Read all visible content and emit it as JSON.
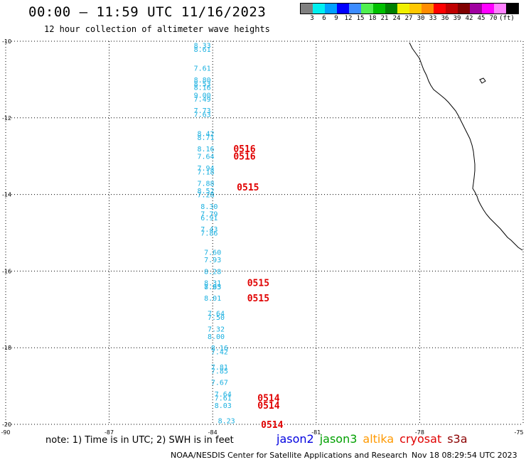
{
  "header": {
    "title": "00:00 – 11:59 UTC 11/16/2023",
    "subtitle": "12 hour collection of altimeter wave heights"
  },
  "colorbar": {
    "colors": [
      "#808080",
      "#00f0f0",
      "#00a0ff",
      "#0000ff",
      "#3c8cff",
      "#50f050",
      "#00c000",
      "#008000",
      "#f0f000",
      "#ffc800",
      "#ff8c00",
      "#ff0000",
      "#c00000",
      "#800000",
      "#a000a0",
      "#ff00ff",
      "#ff80ff",
      "#000000"
    ],
    "labels": [
      "3",
      "6",
      "9",
      "12",
      "15",
      "18",
      "21",
      "24",
      "27",
      "30",
      "33",
      "36",
      "39",
      "42",
      "45",
      "70",
      "(ft)"
    ]
  },
  "axes": {
    "lon_ticks": [
      "-90",
      "-87",
      "-84",
      "-81",
      "-78",
      "-75"
    ],
    "lat_ticks": [
      "-10",
      "-12",
      "-14",
      "-16",
      "-18",
      "-20"
    ]
  },
  "wave_heights_ft": [
    {
      "lat": -10.1,
      "lon": -84.3,
      "value": "8.33"
    },
    {
      "lat": -10.2,
      "lon": -84.3,
      "value": "8.61"
    },
    {
      "lat": -10.7,
      "lon": -84.3,
      "value": "7.61"
    },
    {
      "lat": -11.0,
      "lon": -84.3,
      "value": "8.80"
    },
    {
      "lat": -11.1,
      "lon": -84.3,
      "value": "8.53"
    },
    {
      "lat": -11.2,
      "lon": -84.3,
      "value": "8.16"
    },
    {
      "lat": -11.4,
      "lon": -84.3,
      "value": "9.00"
    },
    {
      "lat": -11.5,
      "lon": -84.3,
      "value": "7.49"
    },
    {
      "lat": -11.8,
      "lon": -84.3,
      "value": "7.73"
    },
    {
      "lat": -11.9,
      "lon": -84.3,
      "value": "7.63"
    },
    {
      "lat": -12.4,
      "lon": -84.2,
      "value": "8.42"
    },
    {
      "lat": -12.5,
      "lon": -84.2,
      "value": "8.71"
    },
    {
      "lat": -12.8,
      "lon": -84.2,
      "value": "8.16"
    },
    {
      "lat": -13.0,
      "lon": -84.2,
      "value": "7.64"
    },
    {
      "lat": -13.3,
      "lon": -84.2,
      "value": "7.94"
    },
    {
      "lat": -13.4,
      "lon": -84.2,
      "value": "7.18"
    },
    {
      "lat": -13.7,
      "lon": -84.2,
      "value": "7.88"
    },
    {
      "lat": -13.9,
      "lon": -84.2,
      "value": "8.52"
    },
    {
      "lat": -14.0,
      "lon": -84.2,
      "value": "7.28"
    },
    {
      "lat": -14.3,
      "lon": -84.1,
      "value": "8.30"
    },
    {
      "lat": -14.5,
      "lon": -84.1,
      "value": "7.79"
    },
    {
      "lat": -14.6,
      "lon": -84.1,
      "value": "6.91"
    },
    {
      "lat": -14.9,
      "lon": -84.1,
      "value": "7.43"
    },
    {
      "lat": -15.0,
      "lon": -84.1,
      "value": "7.86"
    },
    {
      "lat": -15.5,
      "lon": -84.0,
      "value": "7.60"
    },
    {
      "lat": -15.7,
      "lon": -84.0,
      "value": "7.93"
    },
    {
      "lat": -16.0,
      "lon": -84.0,
      "value": "8.28"
    },
    {
      "lat": -16.3,
      "lon": -84.0,
      "value": "8.31"
    },
    {
      "lat": -16.4,
      "lon": -84.0,
      "value": "8.93"
    },
    {
      "lat": -16.4,
      "lon": -84.0,
      "value": "7.85"
    },
    {
      "lat": -16.7,
      "lon": -84.0,
      "value": "8.01"
    },
    {
      "lat": -17.1,
      "lon": -83.9,
      "value": "7.64"
    },
    {
      "lat": -17.2,
      "lon": -83.9,
      "value": "7.50"
    },
    {
      "lat": -17.5,
      "lon": -83.9,
      "value": "7.32"
    },
    {
      "lat": -17.7,
      "lon": -83.9,
      "value": "8.00"
    },
    {
      "lat": -18.0,
      "lon": -83.8,
      "value": "8.16"
    },
    {
      "lat": -18.1,
      "lon": -83.8,
      "value": "7.42"
    },
    {
      "lat": -18.5,
      "lon": -83.8,
      "value": "7.81"
    },
    {
      "lat": -18.6,
      "lon": -83.8,
      "value": "7.85"
    },
    {
      "lat": -18.9,
      "lon": -83.8,
      "value": "7.67"
    },
    {
      "lat": -19.2,
      "lon": -83.7,
      "value": "7.64"
    },
    {
      "lat": -19.3,
      "lon": -83.7,
      "value": "7.61"
    },
    {
      "lat": -19.5,
      "lon": -83.7,
      "value": "8.03"
    },
    {
      "lat": -19.9,
      "lon": -83.6,
      "value": "8.23"
    }
  ],
  "time_labels": [
    {
      "lat": -12.8,
      "lon": -83.4,
      "value": "0516"
    },
    {
      "lat": -13.0,
      "lon": -83.4,
      "value": "0516"
    },
    {
      "lat": -13.8,
      "lon": -83.3,
      "value": "0515"
    },
    {
      "lat": -16.3,
      "lon": -83.0,
      "value": "0515"
    },
    {
      "lat": -16.7,
      "lon": -83.0,
      "value": "0515"
    },
    {
      "lat": -19.3,
      "lon": -82.7,
      "value": "0514"
    },
    {
      "lat": -19.5,
      "lon": -82.7,
      "value": "0514"
    },
    {
      "lat": -20.0,
      "lon": -82.6,
      "value": "0514"
    }
  ],
  "data_color": "#1ab0e0",
  "time_color": "#e00000",
  "note": "note: 1) Time is in UTC; 2) SWH is in feet",
  "missions": [
    {
      "name": "jason2",
      "color": "#0000e0"
    },
    {
      "name": "jason3",
      "color": "#00a000"
    },
    {
      "name": "altika",
      "color": "#ff9900"
    },
    {
      "name": "cryosat",
      "color": "#e00000"
    },
    {
      "name": "s3a",
      "color": "#8b0000"
    }
  ],
  "footer": {
    "credit": "NOAA/NESDIS Center for Satellite Applications and Research",
    "timestamp": "Nov 18 08:29:54 UTC 2023"
  }
}
